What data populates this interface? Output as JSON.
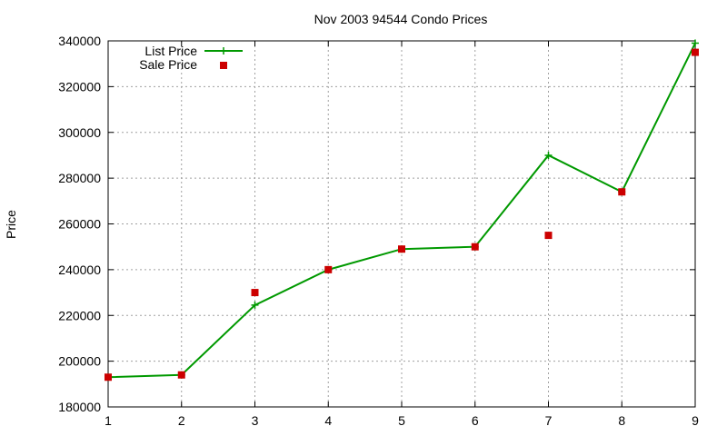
{
  "chart_data": {
    "type": "line",
    "title": "Nov 2003 94544 Condo Prices",
    "xlabel": "",
    "ylabel": "Price",
    "x": [
      1,
      2,
      3,
      4,
      5,
      6,
      7,
      8,
      9
    ],
    "xlim": [
      1,
      9
    ],
    "ylim": [
      180000,
      340000
    ],
    "xticks": [
      "1",
      "2",
      "3",
      "4",
      "5",
      "6",
      "7",
      "8",
      "9"
    ],
    "yticks": [
      "180000",
      "200000",
      "220000",
      "240000",
      "260000",
      "280000",
      "300000",
      "320000",
      "340000"
    ],
    "grid": true,
    "legend_position": "top-left",
    "series": [
      {
        "name": "List Price",
        "style": "line with plus markers",
        "color": "#009900",
        "values": [
          193000,
          194000,
          224500,
          240000,
          249000,
          250000,
          290000,
          274000,
          339000
        ]
      },
      {
        "name": "Sale Price",
        "style": "square markers",
        "color": "#cc0000",
        "values": [
          193000,
          194000,
          230000,
          240000,
          249000,
          250000,
          255000,
          274000,
          335000
        ]
      }
    ]
  }
}
